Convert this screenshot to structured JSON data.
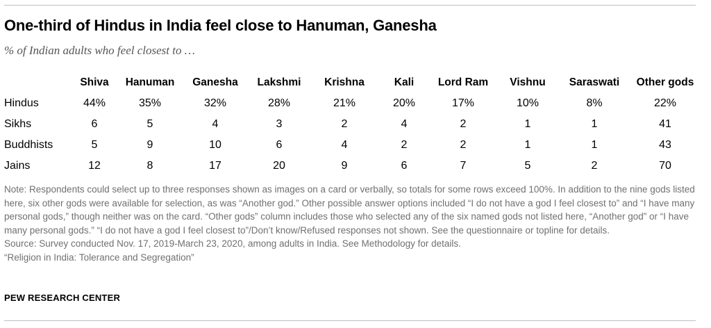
{
  "header": {
    "title": "One-third of Hindus in India feel close to Hanuman, Ganesha",
    "subtitle": "% of Indian adults who feel closest to …"
  },
  "table": {
    "columns": [
      "Shiva",
      "Hanuman",
      "Ganesha",
      "Lakshmi",
      "Krishna",
      "Kali",
      "Lord Ram",
      "Vishnu",
      "Saraswati",
      "Other gods"
    ],
    "rows": [
      {
        "label": "Hindus",
        "values": [
          "44%",
          "35%",
          "32%",
          "28%",
          "21%",
          "20%",
          "17%",
          "10%",
          "8%",
          "22%"
        ]
      },
      {
        "label": "Sikhs",
        "values": [
          "6",
          "5",
          "4",
          "3",
          "2",
          "4",
          "2",
          "1",
          "1",
          "41"
        ]
      },
      {
        "label": "Buddhists",
        "values": [
          "5",
          "9",
          "10",
          "6",
          "4",
          "2",
          "2",
          "1",
          "1",
          "43"
        ]
      },
      {
        "label": "Jains",
        "values": [
          "12",
          "8",
          "17",
          "20",
          "9",
          "6",
          "7",
          "5",
          "2",
          "70"
        ]
      }
    ]
  },
  "footer": {
    "note": "Note: Respondents could select up to three responses shown as images on a card or verbally, so totals for some rows exceed 100%. In addition to the nine gods listed here, six other gods were available for selection, as was “Another god.” Other possible answer options included “I do not have a god I feel closest to” and “I have many personal gods,” though neither was on the card. “Other gods” column includes those who selected any of the six named gods not listed here, “Another god” or “I have many personal gods.” “I do not have a god I feel closest to”/Don’t know/Refused responses not shown. See the questionnaire or topline for details.",
    "source": "Source: Survey conducted Nov. 17, 2019-March 23, 2020, among adults in India. See Methodology for details.",
    "report": "“Religion in India: Tolerance and Segregation”",
    "brand": "PEW RESEARCH CENTER"
  }
}
